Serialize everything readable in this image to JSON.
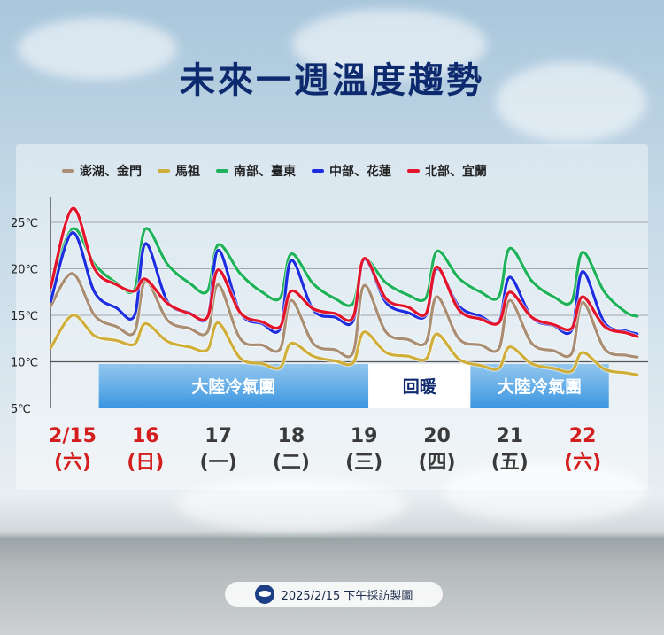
{
  "title": "未來一週溫度趨勢",
  "footer_text": "2025/2/15 下午採訪製圖",
  "chart_data": {
    "type": "line",
    "yticks": [
      "25℃",
      "20℃",
      "15℃",
      "10℃",
      "5℃"
    ],
    "ylim": [
      5,
      27
    ],
    "days": [
      {
        "date": "2/15",
        "dow": "(六)",
        "holiday": true
      },
      {
        "date": "16",
        "dow": "(日)",
        "holiday": true
      },
      {
        "date": "17",
        "dow": "(一)",
        "holiday": false
      },
      {
        "date": "18",
        "dow": "(二)",
        "holiday": false
      },
      {
        "date": "19",
        "dow": "(三)",
        "holiday": false
      },
      {
        "date": "20",
        "dow": "(四)",
        "holiday": false
      },
      {
        "date": "21",
        "dow": "(五)",
        "holiday": false
      },
      {
        "date": "22",
        "dow": "(六)",
        "holiday": true
      }
    ],
    "bands": [
      {
        "label": "大陸冷氣團",
        "from": 0.5,
        "to": 4.2,
        "color": "#3a96dd"
      },
      {
        "label": "回暖",
        "from": 4.2,
        "to": 5.6,
        "color": "#ffffff"
      },
      {
        "label": "大陸冷氣團",
        "from": 5.6,
        "to": 7.5,
        "color": "#3a96dd"
      }
    ],
    "series": [
      {
        "name": "澎湖、金門",
        "color": "#a98e74",
        "x": [
          -0.3,
          0.0,
          0.3,
          0.6,
          0.85,
          1.0,
          1.3,
          1.6,
          1.85,
          2.0,
          2.3,
          2.6,
          2.85,
          3.0,
          3.3,
          3.6,
          3.85,
          4.0,
          4.3,
          4.6,
          4.85,
          5.0,
          5.3,
          5.6,
          5.85,
          6.0,
          6.3,
          6.6,
          6.85,
          7.0,
          7.3,
          7.6,
          7.75
        ],
        "y": [
          16.0,
          19.5,
          15.0,
          13.8,
          13.2,
          18.7,
          14.5,
          13.6,
          13.2,
          18.3,
          12.5,
          11.8,
          11.4,
          16.6,
          12.0,
          11.3,
          11.0,
          18.2,
          13.2,
          12.4,
          12.1,
          17.0,
          12.5,
          11.8,
          11.4,
          16.6,
          12.0,
          11.2,
          10.9,
          16.4,
          11.4,
          10.7,
          10.5
        ]
      },
      {
        "name": "馬祖",
        "color": "#cfae3a",
        "x": [
          -0.3,
          0.0,
          0.3,
          0.6,
          0.85,
          1.0,
          1.3,
          1.6,
          1.85,
          2.0,
          2.3,
          2.6,
          2.85,
          3.0,
          3.3,
          3.6,
          3.85,
          4.0,
          4.3,
          4.6,
          4.85,
          5.0,
          5.3,
          5.6,
          5.85,
          6.0,
          6.3,
          6.6,
          6.85,
          7.0,
          7.3,
          7.6,
          7.75
        ],
        "y": [
          11.5,
          15.0,
          12.8,
          12.3,
          11.9,
          14.1,
          12.2,
          11.6,
          11.3,
          14.2,
          10.4,
          9.8,
          9.4,
          12.0,
          10.6,
          10.1,
          9.9,
          13.2,
          11.0,
          10.6,
          10.3,
          13.0,
          10.3,
          9.6,
          9.3,
          11.6,
          9.8,
          9.3,
          9.0,
          11.0,
          9.2,
          8.8,
          8.6
        ]
      },
      {
        "name": "南部、臺東",
        "color": "#1eb35a",
        "x": [
          -0.3,
          0.0,
          0.3,
          0.6,
          0.85,
          1.0,
          1.3,
          1.6,
          1.85,
          2.0,
          2.3,
          2.6,
          2.85,
          3.0,
          3.3,
          3.6,
          3.85,
          4.0,
          4.3,
          4.6,
          4.85,
          5.0,
          5.3,
          5.6,
          5.85,
          6.0,
          6.3,
          6.6,
          6.85,
          7.0,
          7.3,
          7.6,
          7.75
        ],
        "y": [
          18.0,
          24.3,
          20.5,
          18.5,
          17.8,
          24.3,
          20.5,
          18.5,
          17.6,
          22.6,
          19.5,
          17.5,
          16.9,
          21.6,
          18.4,
          16.8,
          16.3,
          21.0,
          18.5,
          17.2,
          16.9,
          21.9,
          19.0,
          17.5,
          17.0,
          22.2,
          18.7,
          17.0,
          16.5,
          21.8,
          17.5,
          15.3,
          14.9
        ]
      },
      {
        "name": "中部、花蓮",
        "color": "#1c2ee0",
        "x": [
          -0.3,
          0.0,
          0.3,
          0.6,
          0.85,
          1.0,
          1.3,
          1.6,
          1.85,
          2.0,
          2.3,
          2.6,
          2.85,
          3.0,
          3.3,
          3.6,
          3.85,
          4.0,
          4.3,
          4.6,
          4.85,
          5.0,
          5.3,
          5.6,
          5.85,
          6.0,
          6.3,
          6.6,
          6.85,
          7.0,
          7.3,
          7.6,
          7.75
        ],
        "y": [
          16.5,
          23.9,
          17.5,
          15.8,
          15.0,
          22.7,
          16.5,
          15.3,
          14.8,
          22.0,
          15.3,
          14.1,
          13.6,
          20.9,
          15.6,
          14.8,
          14.4,
          21.0,
          16.4,
          15.3,
          15.0,
          20.0,
          16.0,
          14.9,
          14.3,
          19.1,
          14.8,
          13.9,
          13.4,
          19.7,
          14.2,
          13.3,
          13.0
        ]
      },
      {
        "name": "北部、宜蘭",
        "color": "#e3142a",
        "x": [
          -0.3,
          0.0,
          0.3,
          0.6,
          0.85,
          1.0,
          1.3,
          1.6,
          1.85,
          2.0,
          2.3,
          2.6,
          2.85,
          3.0,
          3.3,
          3.6,
          3.85,
          4.0,
          4.3,
          4.6,
          4.85,
          5.0,
          5.3,
          5.6,
          5.85,
          6.0,
          6.3,
          6.6,
          6.85,
          7.0,
          7.3,
          7.6,
          7.75
        ],
        "y": [
          18.0,
          26.5,
          20.0,
          18.3,
          17.6,
          18.9,
          16.3,
          15.2,
          14.8,
          19.9,
          15.3,
          14.3,
          13.8,
          17.6,
          15.7,
          15.2,
          14.8,
          21.1,
          16.8,
          15.9,
          15.2,
          20.2,
          15.6,
          14.6,
          14.2,
          17.5,
          14.8,
          14.0,
          13.6,
          17.0,
          13.8,
          13.1,
          12.7
        ]
      }
    ]
  }
}
